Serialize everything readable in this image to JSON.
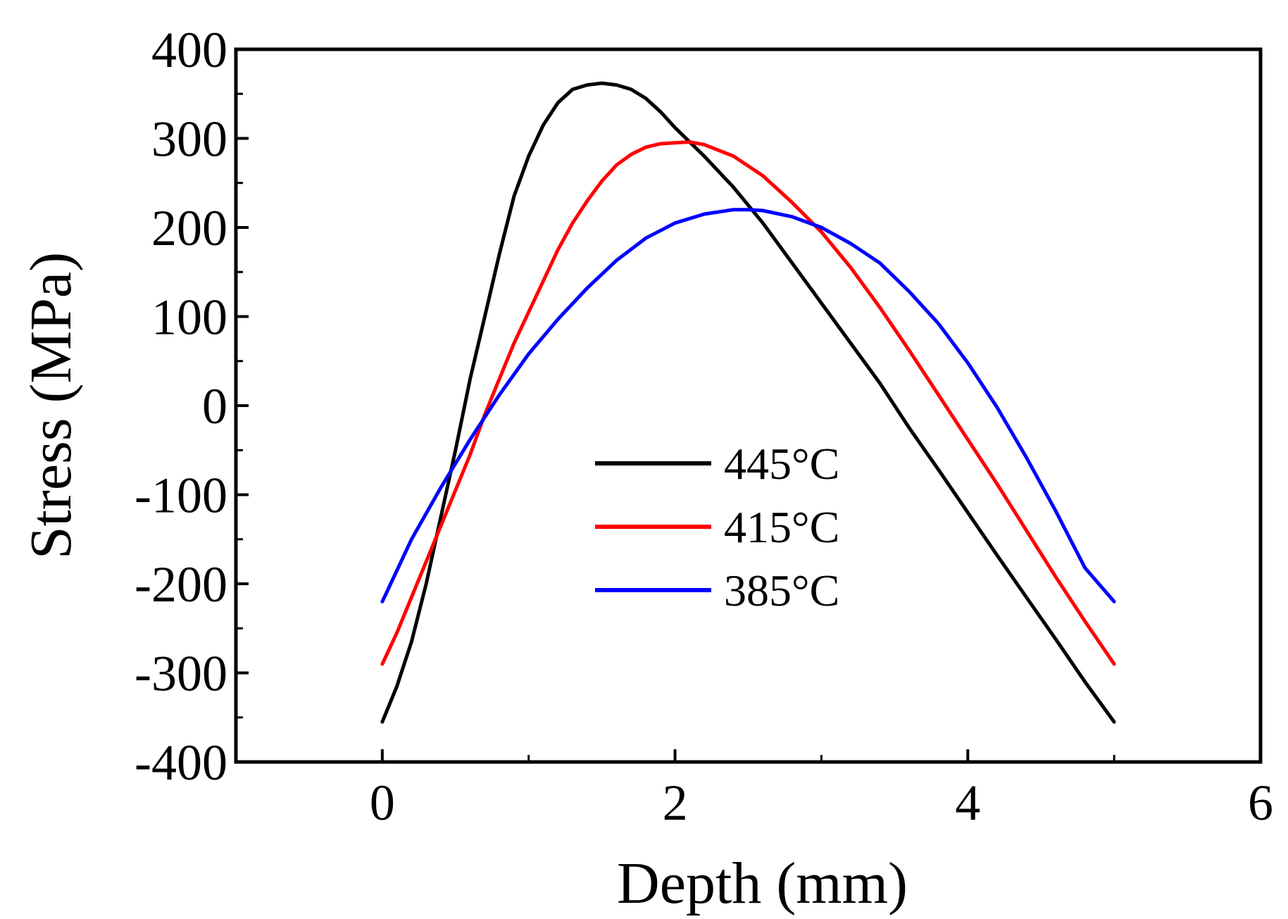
{
  "chart_data": {
    "type": "line",
    "title": "",
    "xlabel": "Depth (mm)",
    "ylabel": "Stress (MPa)",
    "xlim": [
      -1,
      6
    ],
    "ylim": [
      -400,
      400
    ],
    "xticks": [
      0,
      2,
      4,
      6
    ],
    "yticks": [
      -400,
      -300,
      -200,
      -100,
      0,
      100,
      200,
      300,
      400
    ],
    "xtick_labels": [
      "0",
      "2",
      "4",
      "6"
    ],
    "ytick_labels": [
      "-400",
      "-300",
      "-200",
      "-100",
      "0",
      "100",
      "200",
      "300",
      "400"
    ],
    "grid": false,
    "legend_position": "center",
    "series": [
      {
        "name": "445°C",
        "color": "#000000",
        "x": [
          0,
          0.1,
          0.2,
          0.3,
          0.4,
          0.5,
          0.6,
          0.7,
          0.8,
          0.9,
          1.0,
          1.1,
          1.2,
          1.3,
          1.4,
          1.5,
          1.6,
          1.7,
          1.8,
          1.9,
          2.0,
          2.2,
          2.4,
          2.6,
          2.8,
          3.0,
          3.2,
          3.4,
          3.6,
          3.8,
          4.0,
          4.2,
          4.4,
          4.6,
          4.8,
          5.0
        ],
        "y": [
          -355,
          -315,
          -265,
          -200,
          -125,
          -50,
          30,
          100,
          170,
          235,
          280,
          315,
          340,
          355,
          360,
          362,
          360,
          355,
          345,
          330,
          312,
          280,
          245,
          205,
          160,
          115,
          70,
          25,
          -25,
          -72,
          -120,
          -168,
          -215,
          -262,
          -310,
          -355
        ]
      },
      {
        "name": "415°C",
        "color": "#ff0000",
        "x": [
          0,
          0.1,
          0.2,
          0.3,
          0.4,
          0.5,
          0.6,
          0.7,
          0.8,
          0.9,
          1.0,
          1.1,
          1.2,
          1.3,
          1.4,
          1.5,
          1.6,
          1.7,
          1.8,
          1.9,
          2.0,
          2.1,
          2.2,
          2.4,
          2.6,
          2.8,
          3.0,
          3.2,
          3.4,
          3.6,
          3.8,
          4.0,
          4.2,
          4.4,
          4.6,
          4.8,
          5.0
        ],
        "y": [
          -290,
          -255,
          -215,
          -175,
          -135,
          -95,
          -55,
          -10,
          30,
          70,
          105,
          140,
          175,
          205,
          230,
          252,
          270,
          282,
          290,
          294,
          295,
          296,
          293,
          280,
          258,
          228,
          195,
          155,
          110,
          62,
          12,
          -38,
          -88,
          -140,
          -192,
          -242,
          -290
        ]
      },
      {
        "name": "385°C",
        "color": "#0000ff",
        "x": [
          0,
          0.2,
          0.4,
          0.6,
          0.8,
          1.0,
          1.2,
          1.4,
          1.6,
          1.8,
          2.0,
          2.2,
          2.4,
          2.5,
          2.6,
          2.8,
          3.0,
          3.2,
          3.4,
          3.6,
          3.8,
          4.0,
          4.2,
          4.4,
          4.6,
          4.8,
          5.0
        ],
        "y": [
          -220,
          -150,
          -92,
          -38,
          12,
          58,
          97,
          132,
          163,
          188,
          205,
          215,
          220,
          220,
          219,
          212,
          200,
          182,
          160,
          128,
          92,
          48,
          -2,
          -58,
          -118,
          -182,
          -220
        ]
      }
    ]
  }
}
